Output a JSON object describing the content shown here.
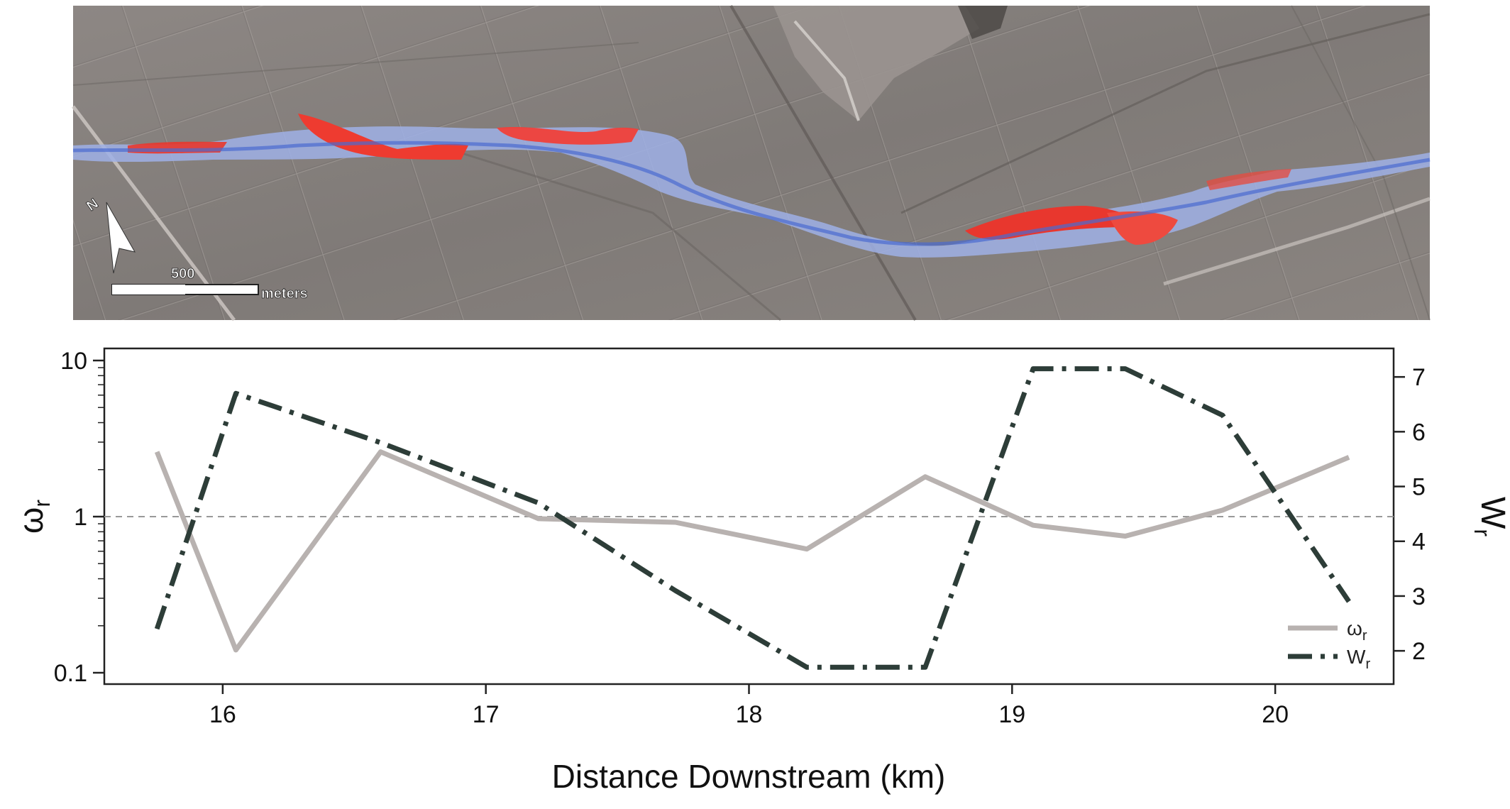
{
  "map": {
    "north_label": "N",
    "scale_value": "500",
    "scale_unit": "meters"
  },
  "chart_data": {
    "type": "line",
    "xlabel": "Distance Downstream (km)",
    "x_ticks": [
      16,
      17,
      18,
      19,
      20
    ],
    "xlim": [
      15.55,
      20.45
    ],
    "y_left": {
      "label": "ω",
      "label_sub": "r",
      "scale": "log",
      "lim": [
        0.1,
        10
      ],
      "ticks": [
        0.1,
        1,
        10
      ],
      "tick_labels": [
        "0.1",
        "1",
        "10"
      ]
    },
    "y_right": {
      "label": "W",
      "label_sub": "r",
      "scale": "linear",
      "lim": [
        1.6,
        7.3
      ],
      "ticks": [
        2,
        3,
        4,
        5,
        6,
        7
      ]
    },
    "reference_line": {
      "axis": "left",
      "value": 1,
      "style": "dashed",
      "color": "#999999"
    },
    "series": [
      {
        "name": "ω",
        "name_sub": "r",
        "axis": "left",
        "style": "solid",
        "color": "#b8b2b0",
        "x": [
          15.75,
          16.05,
          16.6,
          17.2,
          17.72,
          18.22,
          18.67,
          19.08,
          19.43,
          19.8,
          20.28
        ],
        "y": [
          2.6,
          0.14,
          2.6,
          0.97,
          0.92,
          0.62,
          1.8,
          0.88,
          0.75,
          1.1,
          2.4
        ]
      },
      {
        "name": "W",
        "name_sub": "r",
        "axis": "right",
        "style": "dashdot",
        "color": "#2d3d38",
        "x": [
          15.75,
          16.05,
          16.6,
          17.2,
          17.72,
          18.22,
          18.67,
          19.08,
          19.43,
          19.8,
          20.28
        ],
        "y": [
          2.4,
          6.7,
          5.8,
          4.7,
          3.1,
          1.7,
          1.7,
          7.15,
          7.15,
          6.3,
          2.9
        ]
      }
    ],
    "legend": {
      "position": "bottom-right"
    }
  }
}
